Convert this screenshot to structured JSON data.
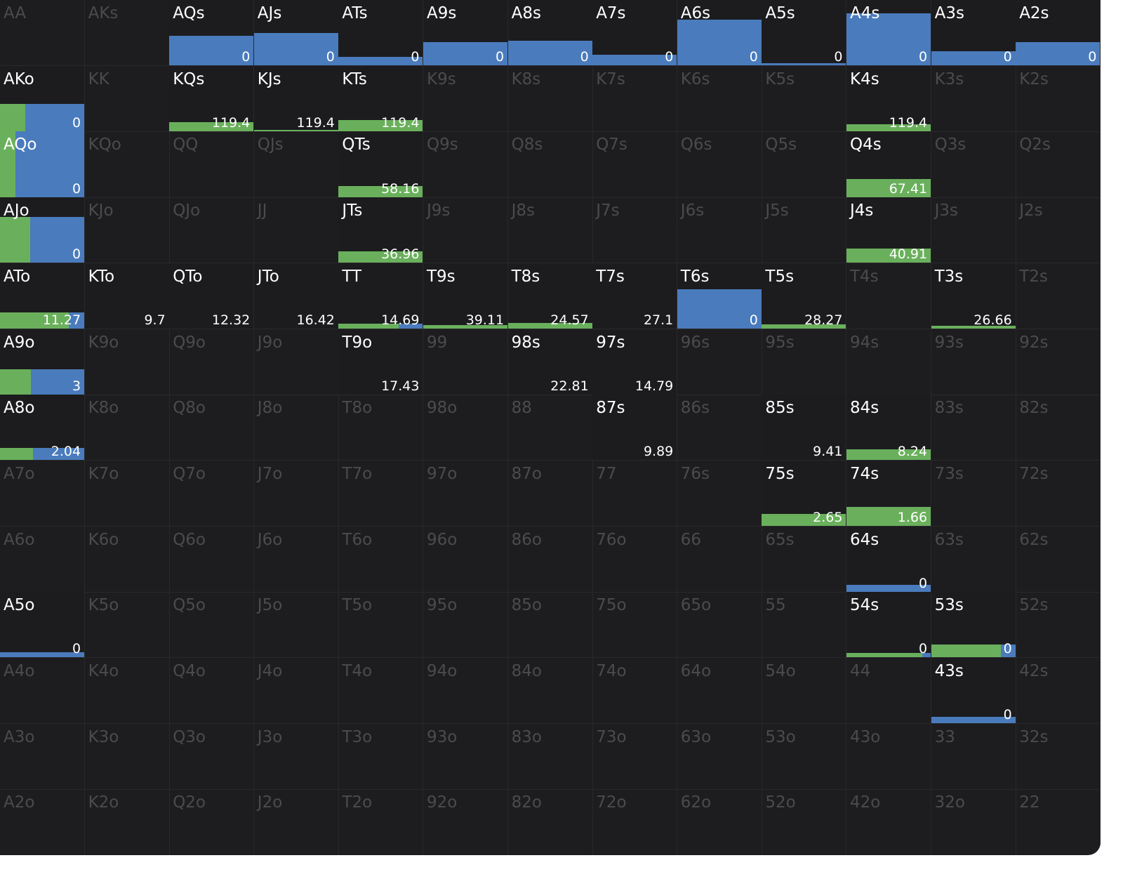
{
  "colors": {
    "background": "#1d1d1f",
    "raise_green": "#6ab05c",
    "call_blue": "#4a7bbd",
    "inactive_text": "#4b4b4d",
    "active_text": "#ffffff"
  },
  "grid": [
    [
      {
        "hand": "AA",
        "active": false
      },
      {
        "hand": "AKs",
        "active": false
      },
      {
        "hand": "AQs",
        "active": true,
        "value": "0",
        "bar": {
          "h": 0.45,
          "g": 0
        }
      },
      {
        "hand": "AJs",
        "active": true,
        "value": "0",
        "bar": {
          "h": 0.5,
          "g": 0
        }
      },
      {
        "hand": "ATs",
        "active": true,
        "value": "0",
        "bar": {
          "h": 0.13,
          "g": 0
        }
      },
      {
        "hand": "A9s",
        "active": true,
        "value": "0",
        "bar": {
          "h": 0.36,
          "g": 0
        }
      },
      {
        "hand": "A8s",
        "active": true,
        "value": "0",
        "bar": {
          "h": 0.38,
          "g": 0
        }
      },
      {
        "hand": "A7s",
        "active": true,
        "value": "0",
        "bar": {
          "h": 0.16,
          "g": 0
        }
      },
      {
        "hand": "A6s",
        "active": true,
        "value": "0",
        "bar": {
          "h": 0.7,
          "g": 0
        }
      },
      {
        "hand": "A5s",
        "active": true,
        "value": "0",
        "bar": {
          "h": 0.03,
          "g": 0
        }
      },
      {
        "hand": "A4s",
        "active": true,
        "value": "0",
        "bar": {
          "h": 0.8,
          "g": 0
        }
      },
      {
        "hand": "A3s",
        "active": true,
        "value": "0",
        "bar": {
          "h": 0.22,
          "g": 0
        }
      },
      {
        "hand": "A2s",
        "active": true,
        "value": "0",
        "bar": {
          "h": 0.36,
          "g": 0
        }
      }
    ],
    [
      {
        "hand": "AKo",
        "active": true,
        "value": "0",
        "bar": {
          "h": 0.42,
          "g": 0.3
        }
      },
      {
        "hand": "KK",
        "active": false
      },
      {
        "hand": "KQs",
        "active": true,
        "value": "119.4",
        "bar": {
          "h": 0.14,
          "g": 1
        }
      },
      {
        "hand": "KJs",
        "active": true,
        "value": "119.4",
        "bar": {
          "h": 0.02,
          "g": 1
        }
      },
      {
        "hand": "KTs",
        "active": true,
        "value": "119.4",
        "bar": {
          "h": 0.17,
          "g": 1
        }
      },
      {
        "hand": "K9s",
        "active": false
      },
      {
        "hand": "K8s",
        "active": false
      },
      {
        "hand": "K7s",
        "active": false
      },
      {
        "hand": "K6s",
        "active": false
      },
      {
        "hand": "K5s",
        "active": false
      },
      {
        "hand": "K4s",
        "active": true,
        "value": "119.4",
        "bar": {
          "h": 0.11,
          "g": 1
        }
      },
      {
        "hand": "K3s",
        "active": false
      },
      {
        "hand": "K2s",
        "active": false
      }
    ],
    [
      {
        "hand": "AQo",
        "active": true,
        "value": "0",
        "bar": {
          "h": 1,
          "g": 0.18
        }
      },
      {
        "hand": "KQo",
        "active": false
      },
      {
        "hand": "QQ",
        "active": false
      },
      {
        "hand": "QJs",
        "active": false
      },
      {
        "hand": "QTs",
        "active": true,
        "value": "58.16",
        "bar": {
          "h": 0.17,
          "g": 1
        }
      },
      {
        "hand": "Q9s",
        "active": false
      },
      {
        "hand": "Q8s",
        "active": false
      },
      {
        "hand": "Q7s",
        "active": false
      },
      {
        "hand": "Q6s",
        "active": false
      },
      {
        "hand": "Q5s",
        "active": false
      },
      {
        "hand": "Q4s",
        "active": true,
        "value": "67.41",
        "bar": {
          "h": 0.28,
          "g": 1
        }
      },
      {
        "hand": "Q3s",
        "active": false
      },
      {
        "hand": "Q2s",
        "active": false
      }
    ],
    [
      {
        "hand": "AJo",
        "active": true,
        "value": "0",
        "bar": {
          "h": 0.7,
          "g": 0.36
        }
      },
      {
        "hand": "KJo",
        "active": false
      },
      {
        "hand": "QJo",
        "active": false
      },
      {
        "hand": "JJ",
        "active": false
      },
      {
        "hand": "JTs",
        "active": true,
        "value": "36.96",
        "bar": {
          "h": 0.17,
          "g": 1
        }
      },
      {
        "hand": "J9s",
        "active": false
      },
      {
        "hand": "J8s",
        "active": false
      },
      {
        "hand": "J7s",
        "active": false
      },
      {
        "hand": "J6s",
        "active": false
      },
      {
        "hand": "J5s",
        "active": false
      },
      {
        "hand": "J4s",
        "active": true,
        "value": "40.91",
        "bar": {
          "h": 0.22,
          "g": 1
        }
      },
      {
        "hand": "J3s",
        "active": false
      },
      {
        "hand": "J2s",
        "active": false
      }
    ],
    [
      {
        "hand": "ATo",
        "active": true,
        "value": "11.27",
        "bar": {
          "h": 0.25,
          "g": 0.82
        }
      },
      {
        "hand": "KTo",
        "active": true,
        "value": "9.7",
        "bar": {
          "h": 0,
          "g": 0
        }
      },
      {
        "hand": "QTo",
        "active": true,
        "value": "12.32",
        "bar": {
          "h": 0,
          "g": 0
        }
      },
      {
        "hand": "JTo",
        "active": true,
        "value": "16.42",
        "bar": {
          "h": 0,
          "g": 0
        }
      },
      {
        "hand": "TT",
        "active": true,
        "value": "14.69",
        "bar": {
          "h": 0.08,
          "g": 0.71
        }
      },
      {
        "hand": "T9s",
        "active": true,
        "value": "39.11",
        "bar": {
          "h": 0.05,
          "g": 1
        }
      },
      {
        "hand": "T8s",
        "active": true,
        "value": "24.57",
        "bar": {
          "h": 0.09,
          "g": 1
        }
      },
      {
        "hand": "T7s",
        "active": true,
        "value": "27.1",
        "bar": {
          "h": 0,
          "g": 0
        }
      },
      {
        "hand": "T6s",
        "active": true,
        "value": "0",
        "bar": {
          "h": 0.6,
          "g": 0
        }
      },
      {
        "hand": "T5s",
        "active": true,
        "value": "28.27",
        "bar": {
          "h": 0.06,
          "g": 1
        }
      },
      {
        "hand": "T4s",
        "active": false
      },
      {
        "hand": "T3s",
        "active": true,
        "value": "26.66",
        "bar": {
          "h": 0.04,
          "g": 1
        }
      },
      {
        "hand": "T2s",
        "active": false
      }
    ],
    [
      {
        "hand": "A9o",
        "active": true,
        "value": "3",
        "bar": {
          "h": 0.38,
          "g": 0.37
        }
      },
      {
        "hand": "K9o",
        "active": false
      },
      {
        "hand": "Q9o",
        "active": false
      },
      {
        "hand": "J9o",
        "active": false
      },
      {
        "hand": "T9o",
        "active": true,
        "value": "17.43",
        "bar": {
          "h": 0,
          "g": 0
        }
      },
      {
        "hand": "99",
        "active": false
      },
      {
        "hand": "98s",
        "active": true,
        "value": "22.81",
        "bar": {
          "h": 0,
          "g": 0
        }
      },
      {
        "hand": "97s",
        "active": true,
        "value": "14.79",
        "bar": {
          "h": 0,
          "g": 0
        }
      },
      {
        "hand": "96s",
        "active": false
      },
      {
        "hand": "95s",
        "active": false
      },
      {
        "hand": "94s",
        "active": false
      },
      {
        "hand": "93s",
        "active": false
      },
      {
        "hand": "92s",
        "active": false
      }
    ],
    [
      {
        "hand": "A8o",
        "active": true,
        "value": "2.04",
        "bar": {
          "h": 0.19,
          "g": 0.39
        }
      },
      {
        "hand": "K8o",
        "active": false
      },
      {
        "hand": "Q8o",
        "active": false
      },
      {
        "hand": "J8o",
        "active": false
      },
      {
        "hand": "T8o",
        "active": false
      },
      {
        "hand": "98o",
        "active": false
      },
      {
        "hand": "88",
        "active": false
      },
      {
        "hand": "87s",
        "active": true,
        "value": "9.89",
        "bar": {
          "h": 0,
          "g": 0
        }
      },
      {
        "hand": "86s",
        "active": false
      },
      {
        "hand": "85s",
        "active": true,
        "value": "9.41",
        "bar": {
          "h": 0,
          "g": 0
        }
      },
      {
        "hand": "84s",
        "active": true,
        "value": "8.24",
        "bar": {
          "h": 0.17,
          "g": 1
        }
      },
      {
        "hand": "83s",
        "active": false
      },
      {
        "hand": "82s",
        "active": false
      }
    ],
    [
      {
        "hand": "A7o",
        "active": false
      },
      {
        "hand": "K7o",
        "active": false
      },
      {
        "hand": "Q7o",
        "active": false
      },
      {
        "hand": "J7o",
        "active": false
      },
      {
        "hand": "T7o",
        "active": false
      },
      {
        "hand": "97o",
        "active": false
      },
      {
        "hand": "87o",
        "active": false
      },
      {
        "hand": "77",
        "active": false
      },
      {
        "hand": "76s",
        "active": false
      },
      {
        "hand": "75s",
        "active": true,
        "value": "2.65",
        "bar": {
          "h": 0.18,
          "g": 1
        }
      },
      {
        "hand": "74s",
        "active": true,
        "value": "1.66",
        "bar": {
          "h": 0.29,
          "g": 1
        }
      },
      {
        "hand": "73s",
        "active": false
      },
      {
        "hand": "72s",
        "active": false
      }
    ],
    [
      {
        "hand": "A6o",
        "active": false
      },
      {
        "hand": "K6o",
        "active": false
      },
      {
        "hand": "Q6o",
        "active": false
      },
      {
        "hand": "J6o",
        "active": false
      },
      {
        "hand": "T6o",
        "active": false
      },
      {
        "hand": "96o",
        "active": false
      },
      {
        "hand": "86o",
        "active": false
      },
      {
        "hand": "76o",
        "active": false
      },
      {
        "hand": "66",
        "active": false
      },
      {
        "hand": "65s",
        "active": false
      },
      {
        "hand": "64s",
        "active": true,
        "value": "0",
        "bar": {
          "h": 0.11,
          "g": 0
        }
      },
      {
        "hand": "63s",
        "active": false
      },
      {
        "hand": "62s",
        "active": false
      }
    ],
    [
      {
        "hand": "A5o",
        "active": true,
        "value": "0",
        "bar": {
          "h": 0.08,
          "g": 0
        }
      },
      {
        "hand": "K5o",
        "active": false
      },
      {
        "hand": "Q5o",
        "active": false
      },
      {
        "hand": "J5o",
        "active": false
      },
      {
        "hand": "T5o",
        "active": false
      },
      {
        "hand": "95o",
        "active": false
      },
      {
        "hand": "85o",
        "active": false
      },
      {
        "hand": "75o",
        "active": false
      },
      {
        "hand": "65o",
        "active": false
      },
      {
        "hand": "55",
        "active": false
      },
      {
        "hand": "54s",
        "active": true,
        "value": "0",
        "bar": {
          "h": 0.07,
          "g": 0.9
        }
      },
      {
        "hand": "53s",
        "active": true,
        "value": "0",
        "bar": {
          "h": 0.2,
          "g": 0.83
        }
      },
      {
        "hand": "52s",
        "active": false
      }
    ],
    [
      {
        "hand": "A4o",
        "active": false
      },
      {
        "hand": "K4o",
        "active": false
      },
      {
        "hand": "Q4o",
        "active": false
      },
      {
        "hand": "J4o",
        "active": false
      },
      {
        "hand": "T4o",
        "active": false
      },
      {
        "hand": "94o",
        "active": false
      },
      {
        "hand": "84o",
        "active": false
      },
      {
        "hand": "74o",
        "active": false
      },
      {
        "hand": "64o",
        "active": false
      },
      {
        "hand": "54o",
        "active": false
      },
      {
        "hand": "44",
        "active": false
      },
      {
        "hand": "43s",
        "active": true,
        "value": "0",
        "bar": {
          "h": 0.1,
          "g": 0
        }
      },
      {
        "hand": "42s",
        "active": false
      }
    ],
    [
      {
        "hand": "A3o",
        "active": false
      },
      {
        "hand": "K3o",
        "active": false
      },
      {
        "hand": "Q3o",
        "active": false
      },
      {
        "hand": "J3o",
        "active": false
      },
      {
        "hand": "T3o",
        "active": false
      },
      {
        "hand": "93o",
        "active": false
      },
      {
        "hand": "83o",
        "active": false
      },
      {
        "hand": "73o",
        "active": false
      },
      {
        "hand": "63o",
        "active": false
      },
      {
        "hand": "53o",
        "active": false
      },
      {
        "hand": "43o",
        "active": false
      },
      {
        "hand": "33",
        "active": false
      },
      {
        "hand": "32s",
        "active": false
      }
    ],
    [
      {
        "hand": "A2o",
        "active": false
      },
      {
        "hand": "K2o",
        "active": false
      },
      {
        "hand": "Q2o",
        "active": false
      },
      {
        "hand": "J2o",
        "active": false
      },
      {
        "hand": "T2o",
        "active": false
      },
      {
        "hand": "92o",
        "active": false
      },
      {
        "hand": "82o",
        "active": false
      },
      {
        "hand": "72o",
        "active": false
      },
      {
        "hand": "62o",
        "active": false
      },
      {
        "hand": "52o",
        "active": false
      },
      {
        "hand": "42o",
        "active": false
      },
      {
        "hand": "32o",
        "active": false
      },
      {
        "hand": "22",
        "active": false
      }
    ]
  ]
}
